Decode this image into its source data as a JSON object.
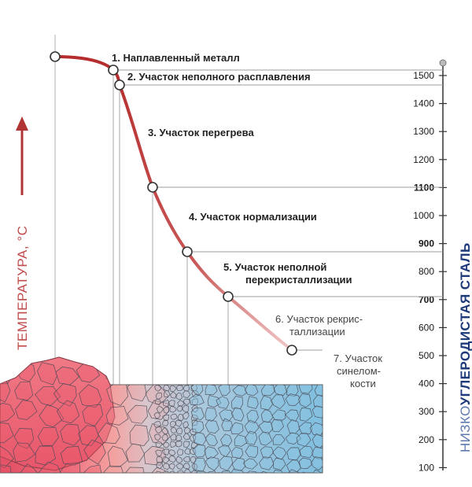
{
  "diagram": {
    "y_axis_label": "ТЕМПЕРАТУРА, °C",
    "right_axis_label_prefix": "НИЗКО",
    "right_axis_label_main": "УГЛЕРОДИСТАЯ СТАЛЬ",
    "temperature_ticks": [
      "1500",
      "1400",
      "1300",
      "1200",
      "1100",
      "1000",
      "900",
      "800",
      "700",
      "600",
      "500",
      "400",
      "300",
      "200",
      "100"
    ],
    "zones": [
      {
        "number": "1.",
        "lines": [
          "Наплавленный металл"
        ]
      },
      {
        "number": "2.",
        "lines": [
          "Участок неполного расплавления"
        ]
      },
      {
        "number": "3.",
        "lines": [
          "Участок перегрева"
        ]
      },
      {
        "number": "4.",
        "lines": [
          "Участок нормализации"
        ]
      },
      {
        "number": "5.",
        "lines": [
          "Участок неполной",
          "перекристаллизации"
        ]
      },
      {
        "number": "6.",
        "lines": [
          "Участок рекрис-",
          "таллизации"
        ]
      },
      {
        "number": "7.",
        "lines": [
          "Участок",
          "синелом-",
          "кости"
        ]
      }
    ],
    "colors": {
      "curve": "#b83a3a",
      "arrow": "#b03434",
      "axis_label": "#c04b4b",
      "steel_label": "#2f4e8a",
      "hot_metal": "#e65a6c",
      "cold_metal": "#8ec7e4"
    }
  }
}
